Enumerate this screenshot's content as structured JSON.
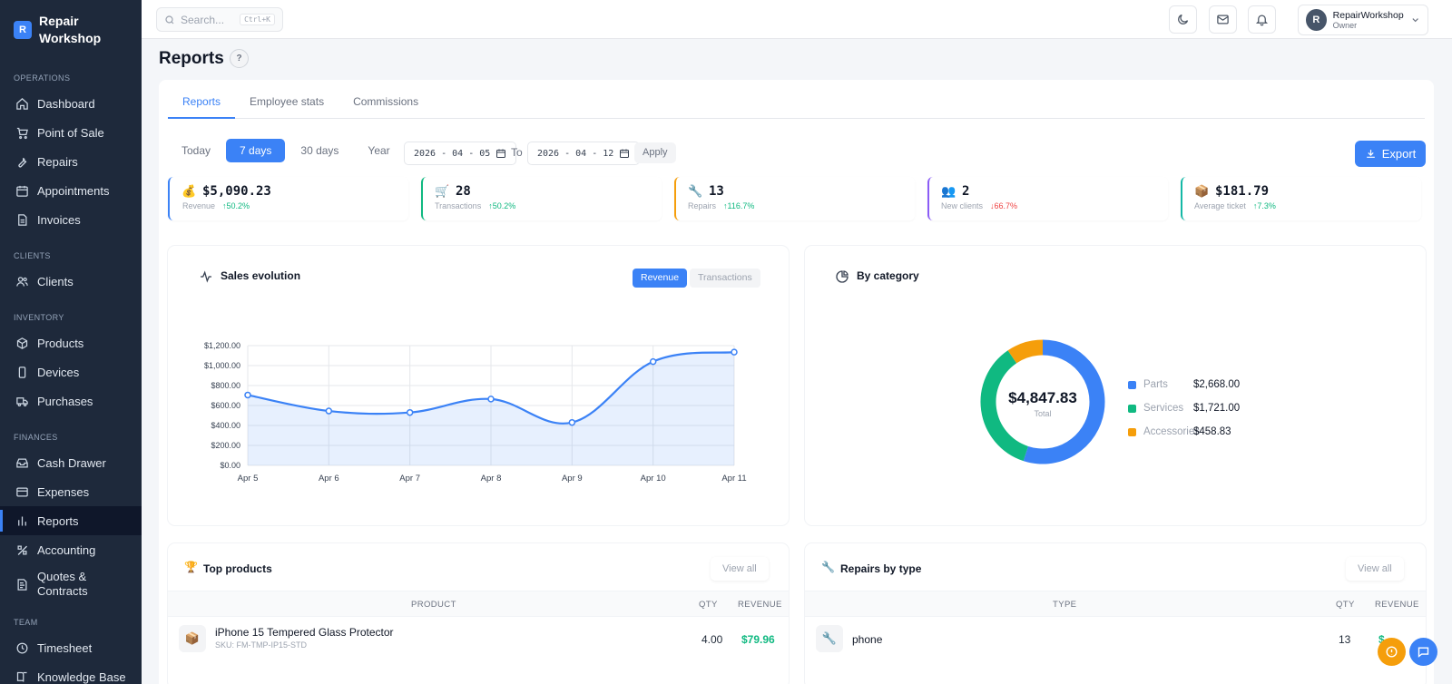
{
  "brand": {
    "logo_letter": "R",
    "name_line1": "Repair",
    "name_line2": "Workshop"
  },
  "sidebar": {
    "sections": [
      {
        "title": "Operations",
        "items": [
          {
            "label": "Dashboard",
            "icon": "home-icon"
          },
          {
            "label": "Point of Sale",
            "icon": "cart-icon"
          },
          {
            "label": "Repairs",
            "icon": "wrench-icon"
          },
          {
            "label": "Appointments",
            "icon": "calendar-icon"
          },
          {
            "label": "Invoices",
            "icon": "file-icon"
          }
        ]
      },
      {
        "title": "Clients",
        "items": [
          {
            "label": "Clients",
            "icon": "users-icon"
          }
        ]
      },
      {
        "title": "Inventory",
        "items": [
          {
            "label": "Products",
            "icon": "box-icon"
          },
          {
            "label": "Devices",
            "icon": "phone-icon"
          },
          {
            "label": "Purchases",
            "icon": "truck-icon"
          }
        ]
      },
      {
        "title": "Finances",
        "items": [
          {
            "label": "Cash Drawer",
            "icon": "drawer-icon"
          },
          {
            "label": "Expenses",
            "icon": "card-icon"
          },
          {
            "label": "Reports",
            "icon": "bar-chart-icon",
            "active": true
          },
          {
            "label": "Accounting",
            "icon": "calculator-icon"
          },
          {
            "label": "Quotes & Contracts",
            "icon": "contract-icon"
          }
        ]
      },
      {
        "title": "Team",
        "items": [
          {
            "label": "Timesheet",
            "icon": "clock-icon"
          },
          {
            "label": "Knowledge Base",
            "icon": "book-icon"
          }
        ]
      }
    ]
  },
  "topbar": {
    "search_placeholder": "Search...",
    "search_shortcut": "Ctrl+K",
    "user_name": "RepairWorkshop",
    "user_role": "Owner",
    "avatar_letter": "R"
  },
  "page": {
    "title": "Reports",
    "help": "?"
  },
  "tabs": [
    "Reports",
    "Employee stats",
    "Commissions"
  ],
  "filters": {
    "periods": [
      "Today",
      "7 days",
      "30 days",
      "Year"
    ],
    "active_period": "7 days",
    "date_from": "2026 - 04 - 05",
    "to_label": "To",
    "date_to": "2026 - 04 - 12",
    "apply_label": "Apply",
    "export_label": "Export"
  },
  "kpis": [
    {
      "emoji": "💰",
      "value": "$5,090.23",
      "label": "Revenue",
      "change": "↑50.2%",
      "trend": "up",
      "color": "#3b82f6"
    },
    {
      "emoji": "🛒",
      "value": "28",
      "label": "Transactions",
      "change": "↑50.2%",
      "trend": "up",
      "color": "#10b981"
    },
    {
      "emoji": "🔧",
      "value": "13",
      "label": "Repairs",
      "change": "↑116.7%",
      "trend": "up",
      "color": "#f59e0b"
    },
    {
      "emoji": "👥",
      "value": "2",
      "label": "New clients",
      "change": "↓66.7%",
      "trend": "down",
      "color": "#8b5cf6"
    },
    {
      "emoji": "📦",
      "value": "$181.79",
      "label": "Average ticket",
      "change": "↑7.3%",
      "trend": "up",
      "color": "#14b8a6"
    }
  ],
  "sales": {
    "title": "Sales evolution",
    "toggle_revenue": "Revenue",
    "toggle_transactions": "Transactions"
  },
  "category": {
    "title": "By category",
    "total_value": "$4,847.83",
    "total_label": "Total",
    "items": [
      {
        "name": "Parts",
        "value": "$2,668.00",
        "color": "#3b82f6"
      },
      {
        "name": "Services",
        "value": "$1,721.00",
        "color": "#10b981"
      },
      {
        "name": "Accessories",
        "value": "$458.83",
        "color": "#f59e0b"
      }
    ]
  },
  "top_products": {
    "title": "Top products",
    "title_emoji": "🏆",
    "view_all": "View all",
    "col_product": "Product",
    "col_qty": "Qty",
    "col_revenue": "Revenue",
    "rows": [
      {
        "name": "iPhone 15 Tempered Glass Protector",
        "sku": "SKU: FM-TMP-IP15-STD",
        "qty": "4.00",
        "revenue": "$79.96",
        "emoji": "📦"
      }
    ]
  },
  "repairs_by_type": {
    "title": "Repairs by type",
    "title_emoji": "🔧",
    "view_all": "View all",
    "col_type": "Type",
    "col_qty": "Qty",
    "col_revenue": "Revenue",
    "rows": [
      {
        "type": "phone",
        "qty": "13",
        "revenue": "$...",
        "emoji": "🔧"
      }
    ]
  },
  "chart_data": [
    {
      "type": "area",
      "title": "Sales evolution",
      "categories": [
        "Apr 5",
        "Apr 6",
        "Apr 7",
        "Apr 8",
        "Apr 9",
        "Apr 10",
        "Apr 11"
      ],
      "series": [
        {
          "name": "Revenue",
          "values": [
            705,
            545,
            530,
            665,
            430,
            1040,
            1135
          ]
        }
      ],
      "y_ticks": [
        "$0.00",
        "$200.00",
        "$400.00",
        "$600.00",
        "$800.00",
        "$1,000.00",
        "$1,200.00"
      ],
      "ylim": [
        0,
        1200
      ],
      "grid": true,
      "color": "#3b82f6"
    },
    {
      "type": "pie",
      "title": "By category",
      "categories": [
        "Parts",
        "Services",
        "Accessories"
      ],
      "values": [
        2668.0,
        1721.0,
        458.83
      ],
      "colors": [
        "#3b82f6",
        "#10b981",
        "#f59e0b"
      ]
    }
  ]
}
